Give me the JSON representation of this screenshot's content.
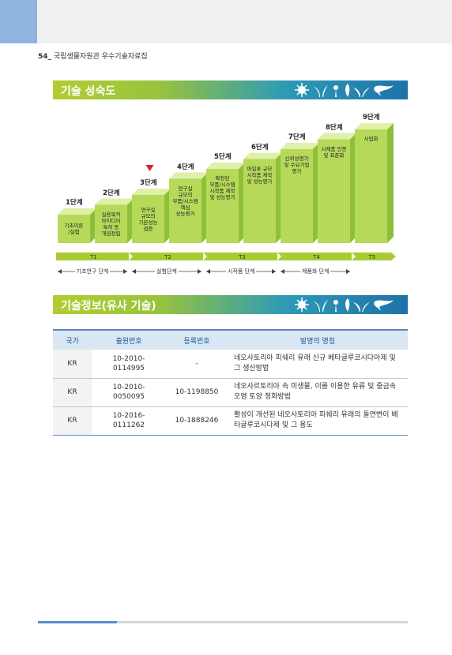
{
  "header": {
    "page_number": "54",
    "book_title": "국립생물자원관 우수기술자료집"
  },
  "section1": {
    "title": "기술 성숙도"
  },
  "stages": [
    {
      "label": "1단계",
      "text": "기초이론\n/실험"
    },
    {
      "label": "2단계",
      "text": "실용목적\n아이디어\n특허 등\n개념정립"
    },
    {
      "label": "3단계",
      "text": "연구실\n규모의\n기본성능\n검증"
    },
    {
      "label": "4단계",
      "text": "연구실\n규모의\n부품/시스템\n핵심\n성능평가"
    },
    {
      "label": "5단계",
      "text": "확장된\n부품/시스템\n시작품 제작\n및 성능평가"
    },
    {
      "label": "6단계",
      "text": "파일롯 규모\n시작품 제작\n및 성능평가"
    },
    {
      "label": "7단계",
      "text": "신뢰성평가\n및 수요기업\n평가"
    },
    {
      "label": "8단계",
      "text": "시제품 인증\n및 표준화"
    },
    {
      "label": "9단계",
      "text": "사업화"
    }
  ],
  "current_stage": 3,
  "trl": [
    "T1",
    "T2",
    "T3",
    "T4",
    "T5"
  ],
  "phases": [
    "기초연구 단계",
    "실험단계",
    "시작품 단계",
    "제품화 단계"
  ],
  "section2": {
    "title": "기술정보(유사 기술)"
  },
  "table": {
    "headers": [
      "국가",
      "출원번호",
      "등록번호",
      "발명의 명칭"
    ],
    "rows": [
      {
        "country": "KR",
        "app_no": "10-2010-\n0114995",
        "reg_no": "-",
        "name": "네오사토리아 피쉐리 유래 신규 베타글루코시다아제 및 그 생산방법"
      },
      {
        "country": "KR",
        "app_no": "10-2010-\n0050095",
        "reg_no": "10-1198850",
        "name": "네오사르토리아 속 미생물, 이를 이용한 유류 및 중금속 오염 토양 정화방법"
      },
      {
        "country": "KR",
        "app_no": "10-2016-\n0111262",
        "reg_no": "10-1888246",
        "name": "활성이 개선된 네오사토리아 피쉐리 유래의 돌연변이 베타글루코시다제 및 그 용도"
      }
    ]
  },
  "colors": {
    "bar_start": "#b2cd33",
    "bar_end": "#1e73a8",
    "box_front": "#b7d95a",
    "marker": "#d3202a",
    "table_header": "#d9e6f4"
  }
}
